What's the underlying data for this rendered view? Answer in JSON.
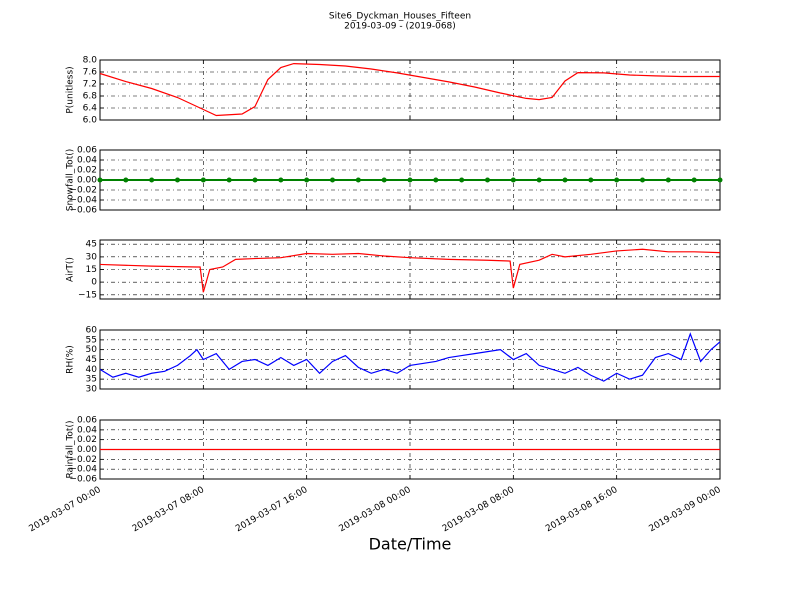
{
  "chart_data": [
    {
      "type": "line",
      "title": "Site6_Dyckman_Houses_Fifteen",
      "subtitle": "2019-03-09 - (2019-068)",
      "y_label": "P(unitless)",
      "color": "#ff0000",
      "x": [
        "2019-03-07 00:00",
        "2019-03-07 02:00",
        "2019-03-07 04:00",
        "2019-03-07 06:00",
        "2019-03-07 08:00",
        "2019-03-07 09:00",
        "2019-03-07 11:00",
        "2019-03-07 12:00",
        "2019-03-07 13:00",
        "2019-03-07 14:00",
        "2019-03-07 15:00",
        "2019-03-07 17:00",
        "2019-03-07 19:00",
        "2019-03-07 21:00",
        "2019-03-07 23:00",
        "2019-03-08 01:00",
        "2019-03-08 03:00",
        "2019-03-08 05:00",
        "2019-03-08 07:00",
        "2019-03-08 09:00",
        "2019-03-08 10:00",
        "2019-03-08 11:00",
        "2019-03-08 12:00",
        "2019-03-08 13:00",
        "2019-03-08 15:00",
        "2019-03-08 17:00",
        "2019-03-08 19:00",
        "2019-03-08 21:00",
        "2019-03-09 00:00"
      ],
      "values": [
        7.55,
        7.28,
        7.05,
        6.75,
        6.35,
        6.15,
        6.2,
        6.45,
        7.35,
        7.75,
        7.88,
        7.85,
        7.8,
        7.7,
        7.57,
        7.42,
        7.27,
        7.1,
        6.9,
        6.72,
        6.68,
        6.75,
        7.3,
        7.58,
        7.57,
        7.5,
        7.47,
        7.45,
        7.45
      ],
      "xlim": [
        "2019-03-07 00:00",
        "2019-03-09 00:00"
      ],
      "xticks": [
        "2019-03-07 00:00",
        "2019-03-07 08:00",
        "2019-03-07 16:00",
        "2019-03-08 00:00",
        "2019-03-08 08:00",
        "2019-03-08 16:00",
        "2019-03-09 00:00"
      ],
      "ylim": [
        6,
        8
      ],
      "yticks": [
        {
          "value": 6,
          "label": "6.0"
        },
        6.4,
        6.8,
        7.2,
        7.6,
        {
          "value": 8,
          "label": "8.0"
        }
      ],
      "grid": true
    },
    {
      "type": "line",
      "y_label": "Snowfall_Tot()",
      "color": "#008000",
      "markers": true,
      "x": [
        "2019-03-07 00:00",
        "2019-03-07 02:00",
        "2019-03-07 04:00",
        "2019-03-07 06:00",
        "2019-03-07 08:00",
        "2019-03-07 10:00",
        "2019-03-07 12:00",
        "2019-03-07 14:00",
        "2019-03-07 16:00",
        "2019-03-07 18:00",
        "2019-03-07 20:00",
        "2019-03-07 22:00",
        "2019-03-08 00:00",
        "2019-03-08 02:00",
        "2019-03-08 04:00",
        "2019-03-08 06:00",
        "2019-03-08 08:00",
        "2019-03-08 10:00",
        "2019-03-08 12:00",
        "2019-03-08 14:00",
        "2019-03-08 16:00",
        "2019-03-08 18:00",
        "2019-03-08 20:00",
        "2019-03-08 22:00",
        "2019-03-09 00:00"
      ],
      "values": [
        0,
        0,
        0,
        0,
        0,
        0,
        0,
        0,
        0,
        0,
        0,
        0,
        0,
        0,
        0,
        0,
        0,
        0,
        0,
        0,
        0,
        0,
        0,
        0,
        0
      ],
      "xlim": [
        "2019-03-07 00:00",
        "2019-03-09 00:00"
      ],
      "xticks": [
        "2019-03-07 00:00",
        "2019-03-07 08:00",
        "2019-03-07 16:00",
        "2019-03-08 00:00",
        "2019-03-08 08:00",
        "2019-03-08 16:00",
        "2019-03-09 00:00"
      ],
      "ylim": [
        -0.06,
        0.06
      ],
      "yticks": [
        {
          "value": -0.06,
          "label": "−0.06"
        },
        {
          "value": -0.04,
          "label": "−0.04"
        },
        {
          "value": -0.02,
          "label": "−0.02"
        },
        {
          "value": 0,
          "label": "0.00"
        },
        0.02,
        0.04,
        0.06
      ],
      "grid": true
    },
    {
      "type": "line",
      "y_label": "AirT()",
      "color": "#ff0000",
      "x": [
        "2019-03-07 00:00",
        "2019-03-07 04:00",
        "2019-03-07 07:30",
        "2019-03-07 07:45",
        "2019-03-07 08:00",
        "2019-03-07 08:30",
        "2019-03-07 09:30",
        "2019-03-07 10:30",
        "2019-03-07 12:00",
        "2019-03-07 14:00",
        "2019-03-07 16:00",
        "2019-03-07 18:00",
        "2019-03-07 20:00",
        "2019-03-07 22:00",
        "2019-03-08 00:00",
        "2019-03-08 03:00",
        "2019-03-08 06:00",
        "2019-03-08 07:45",
        "2019-03-08 08:00",
        "2019-03-08 08:30",
        "2019-03-08 10:00",
        "2019-03-08 11:00",
        "2019-03-08 12:00",
        "2019-03-08 14:00",
        "2019-03-08 16:00",
        "2019-03-08 18:00",
        "2019-03-08 20:00",
        "2019-03-08 22:00",
        "2019-03-09 00:00"
      ],
      "values": [
        21,
        19,
        18,
        18,
        -12,
        15,
        18,
        27,
        28,
        29,
        34,
        33,
        34,
        31,
        29,
        27,
        26,
        25,
        -7,
        21,
        26,
        33,
        30,
        33,
        37,
        39,
        36,
        36,
        35
      ],
      "xlim": [
        "2019-03-07 00:00",
        "2019-03-09 00:00"
      ],
      "xticks": [
        "2019-03-07 00:00",
        "2019-03-07 08:00",
        "2019-03-07 16:00",
        "2019-03-08 00:00",
        "2019-03-08 08:00",
        "2019-03-08 16:00",
        "2019-03-09 00:00"
      ],
      "ylim": [
        -20,
        50
      ],
      "yticks": [
        {
          "value": -15,
          "label": "−15"
        },
        0,
        15,
        30,
        45
      ],
      "grid": true
    },
    {
      "type": "line",
      "y_label": "RH(%)",
      "color": "#0000ff",
      "x": [
        "2019-03-07 00:00",
        "2019-03-07 01:00",
        "2019-03-07 02:00",
        "2019-03-07 03:00",
        "2019-03-07 04:00",
        "2019-03-07 05:00",
        "2019-03-07 06:00",
        "2019-03-07 07:00",
        "2019-03-07 07:30",
        "2019-03-07 08:00",
        "2019-03-07 09:00",
        "2019-03-07 10:00",
        "2019-03-07 11:00",
        "2019-03-07 12:00",
        "2019-03-07 13:00",
        "2019-03-07 14:00",
        "2019-03-07 15:00",
        "2019-03-07 16:00",
        "2019-03-07 17:00",
        "2019-03-07 18:00",
        "2019-03-07 19:00",
        "2019-03-07 20:00",
        "2019-03-07 21:00",
        "2019-03-07 22:00",
        "2019-03-07 23:00",
        "2019-03-08 00:00",
        "2019-03-08 01:00",
        "2019-03-08 02:00",
        "2019-03-08 03:00",
        "2019-03-08 04:00",
        "2019-03-08 05:00",
        "2019-03-08 06:00",
        "2019-03-08 07:00",
        "2019-03-08 08:00",
        "2019-03-08 09:00",
        "2019-03-08 10:00",
        "2019-03-08 11:00",
        "2019-03-08 12:00",
        "2019-03-08 13:00",
        "2019-03-08 14:00",
        "2019-03-08 15:00",
        "2019-03-08 16:00",
        "2019-03-08 17:00",
        "2019-03-08 18:00",
        "2019-03-08 19:00",
        "2019-03-08 20:00",
        "2019-03-08 21:00",
        "2019-03-08 21:42",
        "2019-03-08 22:30",
        "2019-03-08 23:18",
        "2019-03-09 00:00"
      ],
      "values": [
        40,
        36,
        38,
        36,
        38,
        39,
        42,
        47,
        50,
        45,
        48,
        40,
        44,
        45,
        42,
        46,
        42,
        45,
        38,
        44,
        47,
        41,
        38,
        40,
        38,
        42,
        43,
        44,
        46,
        47,
        48,
        49,
        50,
        45,
        48,
        42,
        40,
        38,
        41,
        37,
        34,
        38,
        35,
        37,
        46,
        48,
        45,
        58,
        44,
        50,
        54
      ],
      "xlim": [
        "2019-03-07 00:00",
        "2019-03-09 00:00"
      ],
      "xticks": [
        "2019-03-07 00:00",
        "2019-03-07 08:00",
        "2019-03-07 16:00",
        "2019-03-08 00:00",
        "2019-03-08 08:00",
        "2019-03-08 16:00",
        "2019-03-09 00:00"
      ],
      "ylim": [
        30,
        60
      ],
      "yticks": [
        30,
        35,
        40,
        45,
        50,
        55,
        60
      ],
      "grid": true
    },
    {
      "type": "line",
      "y_label": "Rainfall_Tot()",
      "x_label": "Date/Time",
      "color": "#ff0000",
      "show_xtick_labels": true,
      "x": [
        "2019-03-07 00:00",
        "2019-03-07 08:00",
        "2019-03-07 16:00",
        "2019-03-08 00:00",
        "2019-03-08 08:00",
        "2019-03-08 16:00",
        "2019-03-09 00:00"
      ],
      "values": [
        0,
        0,
        0,
        0,
        0,
        0,
        0
      ],
      "xlim": [
        "2019-03-07 00:00",
        "2019-03-09 00:00"
      ],
      "xticks": [
        "2019-03-07 00:00",
        "2019-03-07 08:00",
        "2019-03-07 16:00",
        "2019-03-08 00:00",
        "2019-03-08 08:00",
        "2019-03-08 16:00",
        "2019-03-09 00:00"
      ],
      "ylim": [
        -0.06,
        0.06
      ],
      "yticks": [
        {
          "value": -0.06,
          "label": "−0.06"
        },
        {
          "value": -0.04,
          "label": "−0.04"
        },
        {
          "value": -0.02,
          "label": "−0.02"
        },
        {
          "value": 0,
          "label": "0.00"
        },
        0.02,
        0.04,
        0.06
      ],
      "grid": true
    }
  ]
}
